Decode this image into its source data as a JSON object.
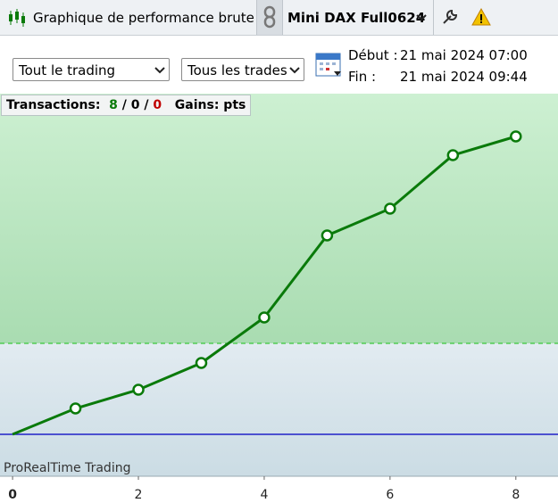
{
  "toolbar": {
    "title": "Graphique de performance brute",
    "instrument": "Mini DAX Full0624"
  },
  "filters": {
    "scope": "Tout le trading",
    "trades": "Tous les trades"
  },
  "period": {
    "start_label": "Début :",
    "start": "21 mai 2024 07:00",
    "end_label": "Fin :",
    "end": "21 mai 2024 09:44"
  },
  "summary": {
    "label": "Transactions:",
    "winners": "8",
    "separator": "/",
    "neutral": "0",
    "losers": "0",
    "gains": "Gains: pts"
  },
  "watermark": "ProRealTime Trading",
  "chart_data": {
    "type": "line",
    "x": [
      0,
      1,
      2,
      3,
      4,
      5,
      6,
      7,
      8
    ],
    "series": [
      {
        "color": "#0a7a0a",
        "values": [
          0,
          29,
          50,
          80,
          131,
          223,
          253,
          313,
          334
        ]
      }
    ],
    "xlim": [
      -0.2,
      8.67
    ],
    "xticks": [
      0,
      2,
      4,
      6,
      8
    ],
    "ylim": [
      -47,
      382
    ],
    "dashed_line": 102,
    "zero_line_color": "#2020c8"
  }
}
